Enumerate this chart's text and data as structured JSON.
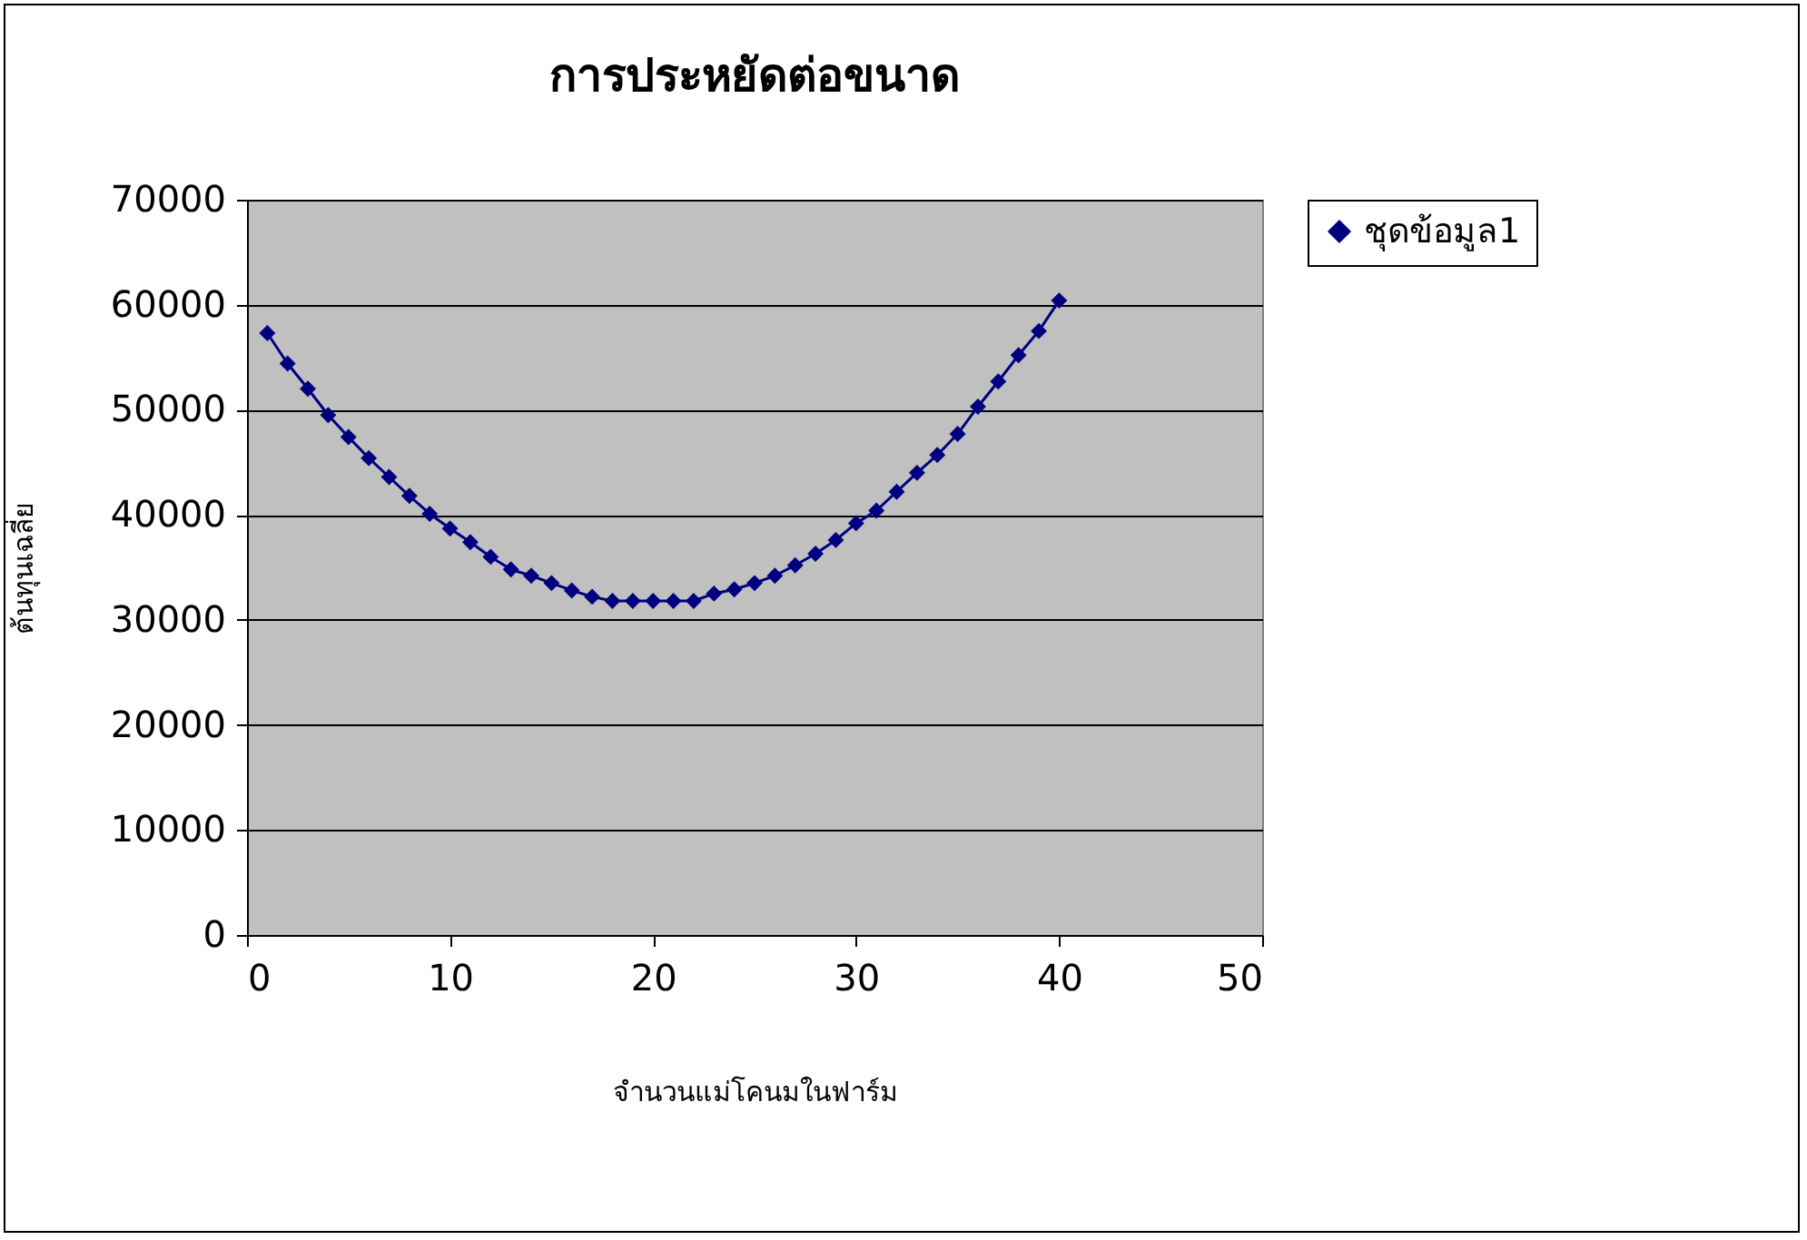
{
  "chart_data": {
    "type": "line",
    "title": "การประหยัดต่อขนาด",
    "xlabel": "จำนวนแม่โคนมในฟาร์ม",
    "ylabel": "ต้นทุนเฉลี่ย",
    "x": [
      1,
      2,
      3,
      4,
      5,
      6,
      7,
      8,
      9,
      10,
      11,
      12,
      13,
      14,
      15,
      16,
      17,
      18,
      19,
      20,
      21,
      22,
      23,
      24,
      25,
      26,
      27,
      28,
      29,
      30,
      31,
      32,
      33,
      34,
      35,
      36,
      37,
      38,
      39,
      40
    ],
    "series": [
      {
        "name": "ชุดข้อมูล1",
        "color": "#000080",
        "values": [
          57300,
          54400,
          52000,
          49500,
          47400,
          45400,
          43600,
          41800,
          40100,
          38700,
          37400,
          36000,
          34800,
          34200,
          33500,
          32800,
          32200,
          31800,
          31800,
          31800,
          31800,
          31800,
          32500,
          32900,
          33500,
          34200,
          35200,
          36300,
          37600,
          39200,
          40400,
          42200,
          44000,
          45700,
          47700,
          50300,
          52700,
          55200,
          57500,
          60400
        ]
      }
    ],
    "xlim": [
      0,
      50
    ],
    "xticks": [
      0,
      10,
      20,
      30,
      40,
      50
    ],
    "ylim": [
      0,
      70000
    ],
    "yticks": [
      0,
      10000,
      20000,
      30000,
      40000,
      50000,
      60000,
      70000
    ],
    "grid": "y",
    "legend": "right",
    "marker": "diamond",
    "line_style": "solid"
  }
}
